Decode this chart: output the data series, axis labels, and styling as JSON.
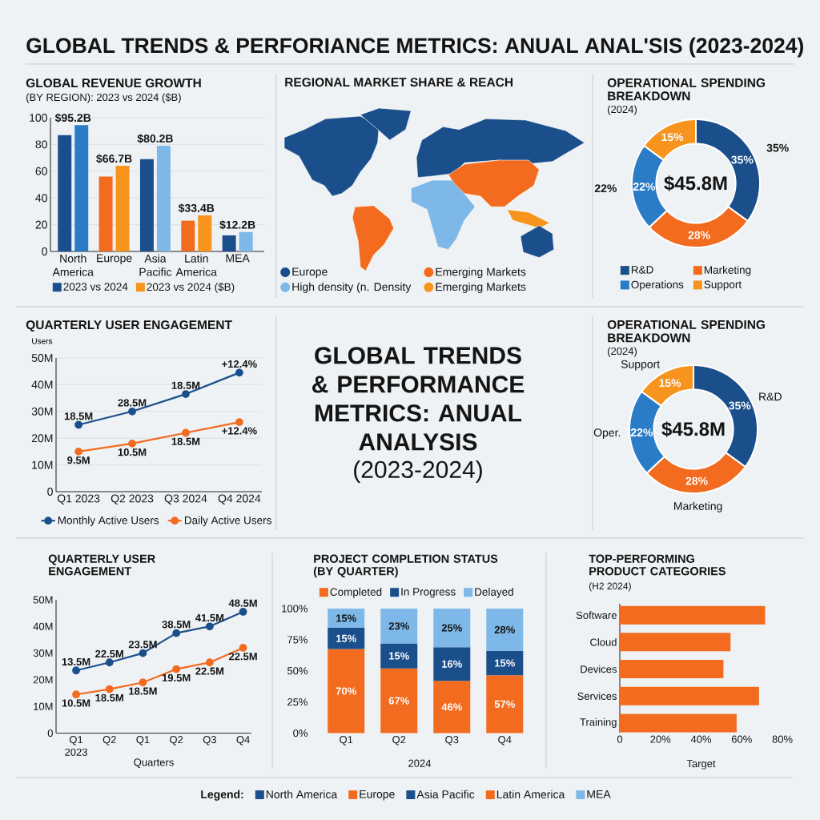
{
  "chart_data": [
    {
      "type": "other",
      "title": "GLOBAL TRENDS & PERFORIANCE METRICS: ANUAL ANAL'SIS (2023-2024)"
    },
    {
      "type": "bar",
      "title": "GLOBAL REVENUE GROWTH",
      "subtitle": "(BY REGION): 2023 vs 2024 ($B)",
      "categories": [
        "North America",
        "Europe",
        "Asia Pacific",
        "Latin America",
        "MEA"
      ],
      "series": [
        {
          "name": "2023 vs 2024",
          "color": "#1b4f8b",
          "colors": [
            "#1b4f8b",
            "#f26b1f",
            "#1b4f8b",
            "#f26b1f",
            "#1b4f8b"
          ],
          "values": [
            87,
            56,
            69,
            23,
            12
          ]
        },
        {
          "name": "2023 vs 2024 ($B)",
          "color": "#f7941e",
          "colors": [
            "#2b7cc6",
            "#f7941e",
            "#7db8e8",
            "#f7941e",
            "#7db8e8"
          ],
          "values": [
            94.5,
            64,
            79,
            27,
            14.5
          ]
        }
      ],
      "ylim": [
        0,
        100
      ],
      "yticks": [
        0,
        20,
        40,
        60,
        80,
        100
      ],
      "grid": "y",
      "legend": "bottom",
      "annotations": [
        "$95.2B",
        "$66.7B",
        "$80.2B",
        "$33.4B",
        "$12.2B"
      ]
    },
    {
      "type": "other",
      "title": "REGIONAL MARKET SHARE & REACH",
      "series": [
        {
          "name": "Europe",
          "color": "#1b4f8b"
        },
        {
          "name": "Emerging Markets",
          "color": "#f26b1f"
        },
        {
          "name": "High density (n. Density",
          "color": "#7db8e8"
        },
        {
          "name": "Emerging Markets",
          "color": "#f7941e"
        }
      ],
      "legend": "bottom"
    },
    {
      "type": "donut",
      "title": "OPERATIONAL SPENDING BREAKDOWN",
      "subtitle": "(2024)",
      "categories": [
        "R&D",
        "Marketing",
        "Operations",
        "Support"
      ],
      "values": [
        35,
        28,
        22,
        15
      ],
      "colors": [
        "#1b4f8b",
        "#f26b1f",
        "#2b7cc6",
        "#f7941e"
      ],
      "value_labels": [
        "35%",
        "28%",
        "22%",
        "15%"
      ],
      "legend": "bottom",
      "annotations": [
        "$45.8M",
        {
          "text": "35%",
          "x": "R&D"
        },
        {
          "text": "22%",
          "x": "Operations"
        }
      ]
    },
    {
      "type": "line",
      "title": "QUARTERLY USER ENGAGEMENT",
      "ylabel": "Users",
      "categories": [
        "Q1 2023",
        "Q2 2023",
        "Q3 2024",
        "Q4 2024"
      ],
      "series": [
        {
          "name": "Monthly Active Users",
          "color": "#1b4f8b",
          "values": [
            25,
            30,
            36.5,
            44.5
          ]
        },
        {
          "name": "Daily Active Users",
          "color": "#f26b1f",
          "values": [
            15,
            18,
            22,
            26
          ]
        }
      ],
      "ylim": [
        0,
        50
      ],
      "yticks": [
        0,
        {
          "value": 10,
          "label": "10M"
        },
        {
          "value": 20,
          "label": "20M"
        },
        {
          "value": 30,
          "label": "30M"
        },
        {
          "value": 40,
          "label": "40M"
        },
        {
          "value": 50,
          "label": "50M"
        }
      ],
      "grid": "y",
      "marker": "circle",
      "line_style": "solid",
      "legend": "bottom",
      "annotations": [
        "18.5M",
        "28.5M",
        "18.5M",
        "+12.4%",
        "9.5M",
        "10.5M",
        "18.5M",
        "+12.4%"
      ]
    },
    {
      "type": "other",
      "title": "GLOBAL TRENDS & PERFORMANCE METRICS: ANUAL ANALYSIS",
      "subtitle": "(2023-2024)"
    },
    {
      "type": "donut",
      "title": "OPERATIONAL SPENDING BREAKDOWN",
      "subtitle": "(2024)",
      "categories": [
        "R&D",
        "Marketing",
        "Oper.",
        "Support"
      ],
      "values": [
        35,
        28,
        22,
        15
      ],
      "colors": [
        "#1b4f8b",
        "#f26b1f",
        "#2b7cc6",
        "#f7941e"
      ],
      "value_labels": [
        "35%",
        "28%",
        "22%",
        "15%"
      ],
      "annotations": [
        "$45.8M"
      ]
    },
    {
      "type": "line",
      "title": "QUARTERLY USER ENGAGEMENT",
      "xlabel": "Quarters",
      "categories": [
        "Q1 2023",
        "Q2",
        "Q1",
        "Q2",
        "Q3",
        "Q4"
      ],
      "series": [
        {
          "color": "#1b4f8b",
          "values": [
            23.5,
            26.5,
            30,
            37.5,
            40,
            45.5
          ]
        },
        {
          "color": "#f26b1f",
          "values": [
            14.5,
            16.5,
            19,
            24,
            26.5,
            32
          ]
        }
      ],
      "ylim": [
        0,
        50
      ],
      "yticks": [
        0,
        {
          "value": 10,
          "label": "10M"
        },
        {
          "value": 20,
          "label": "20M"
        },
        {
          "value": 30,
          "label": "30M"
        },
        {
          "value": 40,
          "label": "40M"
        },
        {
          "value": 50,
          "label": "50M"
        }
      ],
      "marker": "circle",
      "line_style": "solid",
      "annotations": [
        "13.5M",
        "22.5M",
        "23.5M",
        "38.5M",
        "41.5M",
        "48.5M",
        "10.5M",
        "18.5M",
        "18.5M",
        "19.5M",
        "22.5M",
        "22.5M"
      ]
    },
    {
      "type": "bar",
      "stacked": true,
      "title": "PROJECT COMPLETION STATUS (BY QUARTER)",
      "xlabel": "2024",
      "categories": [
        "Q1",
        "Q2",
        "Q3",
        "Q4"
      ],
      "series": [
        {
          "name": "Completed",
          "color": "#f26b1f",
          "values": [
            67.5,
            52,
            42,
            46.5
          ]
        },
        {
          "name": "In Progress",
          "color": "#1b4f8b",
          "values": [
            17,
            20,
            27,
            19.5
          ]
        },
        {
          "name": "Delayed",
          "color": "#7db8e8",
          "values": [
            15.5,
            28,
            31,
            34
          ]
        }
      ],
      "ylim": [
        0,
        100
      ],
      "yticks": [
        {
          "value": 0,
          "label": "0%"
        },
        {
          "value": 25,
          "label": "25%"
        },
        {
          "value": 50,
          "label": "50%"
        },
        {
          "value": 75,
          "label": "75%"
        },
        {
          "value": 100,
          "label": "100%"
        }
      ],
      "legend": "top",
      "annotations": [
        "70%",
        "67%",
        "46%",
        "57%",
        "15%",
        "15%",
        "16%",
        "15%",
        "15%",
        "23%",
        "25%",
        "28%"
      ]
    },
    {
      "type": "bar",
      "orientation": "horizontal",
      "title": "TOP-PERFORMING PRODUCT CATEGORIES",
      "subtitle": "(H2 2024)",
      "xlabel": "Target",
      "categories": [
        "Software",
        "Cloud",
        "Devices",
        "Services",
        "Training"
      ],
      "values": [
        71.5,
        54.5,
        51,
        68.5,
        57.5
      ],
      "color": "#f26b1f",
      "xlim": [
        0,
        80
      ],
      "xticks": [
        0,
        {
          "value": 20,
          "label": "20%"
        },
        {
          "value": 40,
          "label": "40%"
        },
        {
          "value": 60,
          "label": "60%"
        },
        {
          "value": 80,
          "label": "80%"
        }
      ]
    },
    {
      "type": "other",
      "legend_title": "Legend:",
      "series": [
        {
          "name": "North America",
          "color": "#1b4f8b"
        },
        {
          "name": "Europe",
          "color": "#f26b1f"
        },
        {
          "name": "Asia Pacific",
          "color": "#1b4f8b"
        },
        {
          "name": "Latin America",
          "color": "#f26b1f"
        },
        {
          "name": "MEA",
          "color": "#7db8e8"
        }
      ],
      "legend": "bottom"
    }
  ]
}
